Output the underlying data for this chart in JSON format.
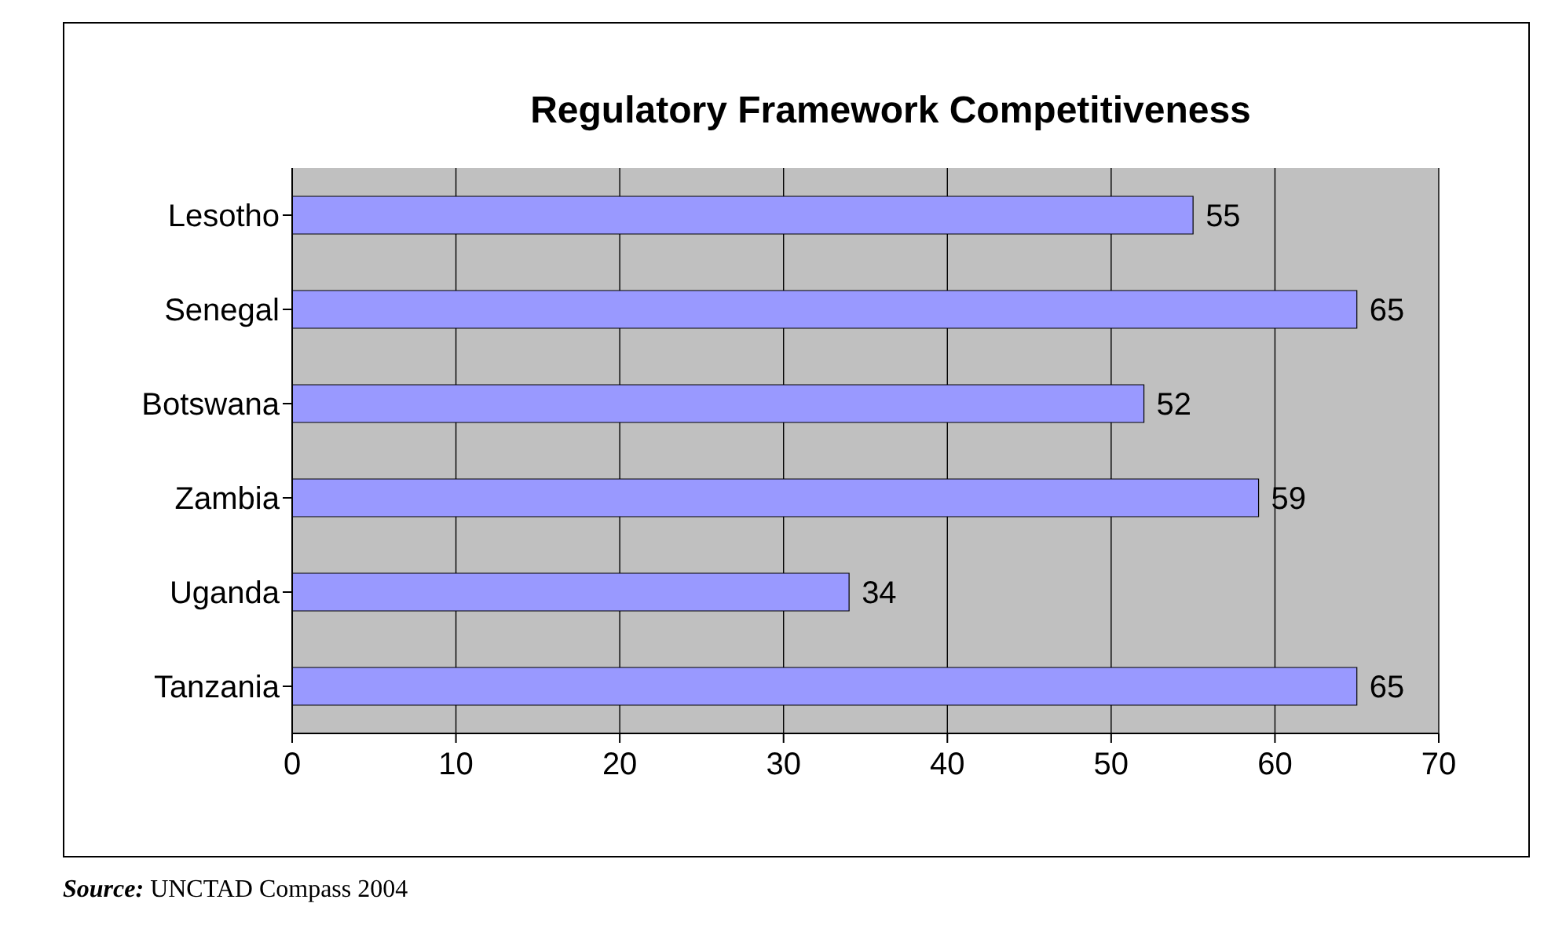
{
  "chart_data": {
    "type": "bar",
    "orientation": "horizontal",
    "title": "Regulatory Framework Competitiveness",
    "categories": [
      "Lesotho",
      "Senegal",
      "Botswana",
      "Zambia",
      "Uganda",
      "Tanzania"
    ],
    "values": [
      55,
      65,
      52,
      59,
      34,
      65
    ],
    "color": "#9999ff",
    "xlim": [
      0,
      70
    ],
    "xticks": [
      0,
      10,
      20,
      30,
      40,
      50,
      60,
      70
    ],
    "grid": "x",
    "data_labels": true,
    "legend": false,
    "annotations": [
      "Source: UNCTAD Compass 2004"
    ]
  }
}
